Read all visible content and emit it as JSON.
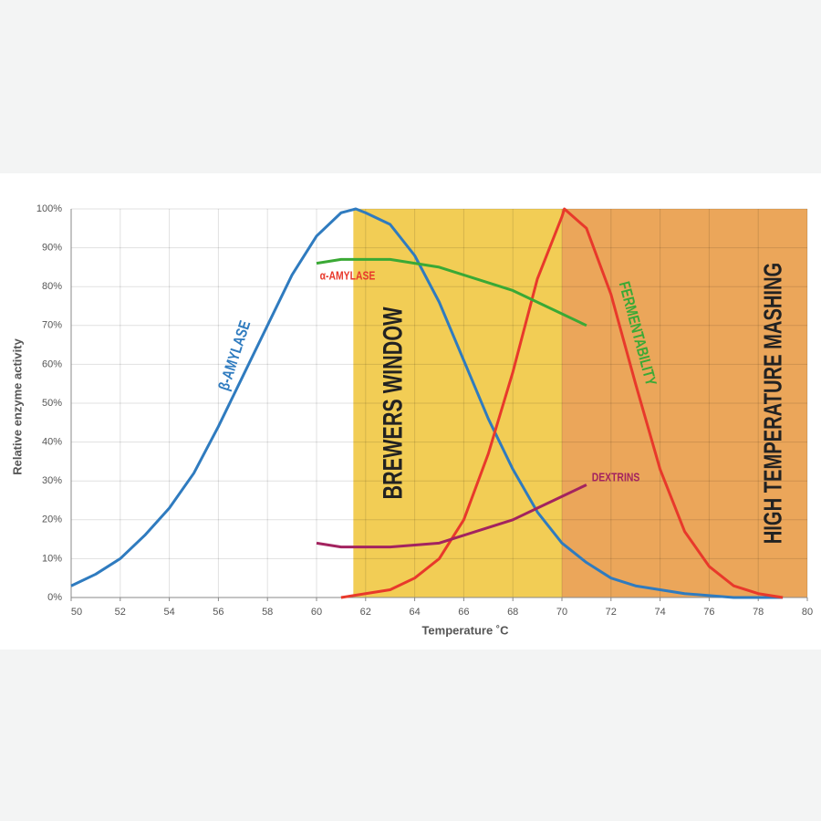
{
  "chart_data": {
    "type": "line",
    "x_label": "Temperature ˚C",
    "y_label": "Relative enzyme activity",
    "xlim": [
      50,
      80
    ],
    "xticks": [
      50,
      52,
      54,
      56,
      58,
      60,
      62,
      64,
      66,
      68,
      70,
      72,
      74,
      76,
      78,
      80
    ],
    "ylim": [
      0,
      100
    ],
    "yticks": [
      {
        "value": 0,
        "label": "0%"
      },
      {
        "value": 10,
        "label": "10%"
      },
      {
        "value": 20,
        "label": "20%"
      },
      {
        "value": 30,
        "label": "30%"
      },
      {
        "value": 40,
        "label": "40%"
      },
      {
        "value": 50,
        "label": "50%"
      },
      {
        "value": 60,
        "label": "60%"
      },
      {
        "value": 70,
        "label": "70%"
      },
      {
        "value": 80,
        "label": "80%"
      },
      {
        "value": 90,
        "label": "90%"
      },
      {
        "value": 100,
        "label": "100%"
      }
    ],
    "grid": true,
    "regions": [
      {
        "label": "BREWERS WINDOW",
        "range": [
          61.5,
          70
        ],
        "color": "#f2cd55"
      },
      {
        "label": "HIGH TEMPERATURE MASHING",
        "range": [
          70,
          80
        ],
        "color": "#eba65a"
      }
    ],
    "series": [
      {
        "name": "β-AMYLASE",
        "color": "#2f7bbf",
        "x": [
          50,
          51,
          52,
          53,
          54,
          55,
          56,
          57,
          58,
          59,
          60,
          61,
          61.6,
          62,
          63,
          64,
          65,
          66,
          67,
          68,
          69,
          70,
          71,
          72,
          73,
          74,
          75,
          76,
          77,
          78,
          79
        ],
        "values": [
          3,
          6,
          10,
          16,
          23,
          32,
          44,
          57,
          70,
          83,
          93,
          99,
          100,
          99,
          96,
          88,
          76,
          61,
          46,
          33,
          22,
          14,
          9,
          5,
          3,
          2,
          1,
          0.5,
          0,
          0,
          0
        ]
      },
      {
        "name": "α-AMYLASE",
        "color": "#e8392b",
        "x": [
          61,
          62,
          63,
          64,
          65,
          66,
          67,
          68,
          69,
          70,
          70.1,
          71,
          72,
          73,
          74,
          75,
          76,
          77,
          78,
          79
        ],
        "values": [
          0,
          1,
          2,
          5,
          10,
          20,
          37,
          58,
          82,
          98,
          100,
          95,
          78,
          55,
          33,
          17,
          8,
          3,
          1,
          0
        ]
      },
      {
        "name": "FERMENTABILITY",
        "color": "#3aa935",
        "x": [
          60,
          61,
          62,
          63,
          64,
          65,
          66,
          67,
          68,
          69,
          70,
          71
        ],
        "values": [
          86,
          87,
          87,
          87,
          86,
          85,
          83,
          81,
          79,
          76,
          73,
          70
        ]
      },
      {
        "name": "DEXTRINS",
        "color": "#a3235f",
        "x": [
          60,
          61,
          62,
          63,
          64,
          65,
          66,
          67,
          68,
          69,
          70,
          71
        ],
        "values": [
          14,
          13,
          13,
          13,
          13.5,
          14,
          16,
          18,
          20,
          23,
          26,
          29
        ]
      }
    ]
  }
}
